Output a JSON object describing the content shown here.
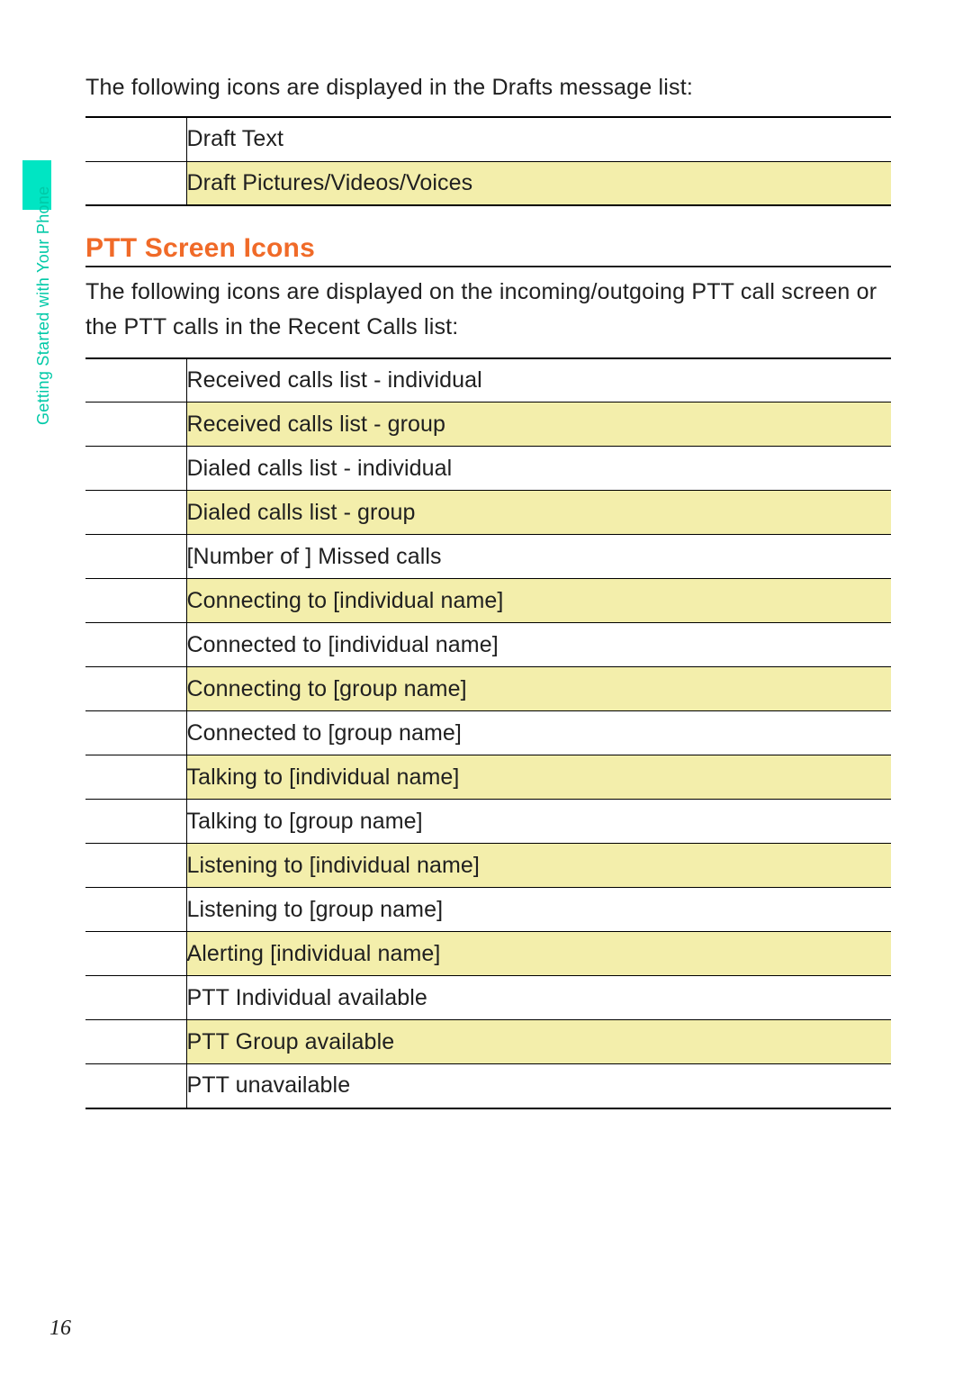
{
  "colors": {
    "accent_teal": "#00e5c3",
    "side_label": "#00c9a7",
    "heading_orange": "#f06a28",
    "row_highlight": "#f3eeab",
    "text": "#202020",
    "rule": "#000000",
    "background": "#ffffff"
  },
  "side_label": "Getting Started with Your Phone",
  "page_number": "16",
  "drafts": {
    "intro": "The following icons are displayed in the Drafts message list:",
    "rows": [
      {
        "label": "Draft Text",
        "shaded": false
      },
      {
        "label": "Draft Pictures/Videos/Voices",
        "shaded": true
      }
    ]
  },
  "ptt": {
    "heading": "PTT Screen Icons",
    "intro": "The following icons are displayed on the incoming/outgoing PTT call screen or the PTT calls in the Recent Calls list:",
    "rows": [
      {
        "label": "Received calls list - individual",
        "shaded": false
      },
      {
        "label": "Received calls list - group",
        "shaded": true
      },
      {
        "label": "Dialed calls list - individual",
        "shaded": false
      },
      {
        "label": "Dialed calls list - group",
        "shaded": true
      },
      {
        "label": "[Number of ] Missed calls",
        "shaded": false
      },
      {
        "label": "Connecting to [individual name]",
        "shaded": true
      },
      {
        "label": "Connected to [individual name]",
        "shaded": false
      },
      {
        "label": "Connecting to [group name]",
        "shaded": true
      },
      {
        "label": "Connected to [group name]",
        "shaded": false
      },
      {
        "label": "Talking to [individual name]",
        "shaded": true
      },
      {
        "label": "Talking to [group name]",
        "shaded": false
      },
      {
        "label": "Listening to [individual name]",
        "shaded": true
      },
      {
        "label": "Listening to [group name]",
        "shaded": false
      },
      {
        "label": "Alerting [individual name]",
        "shaded": true
      },
      {
        "label": "PTT Individual available",
        "shaded": false
      },
      {
        "label": "PTT Group available",
        "shaded": true
      },
      {
        "label": "PTT unavailable",
        "shaded": false
      }
    ]
  }
}
